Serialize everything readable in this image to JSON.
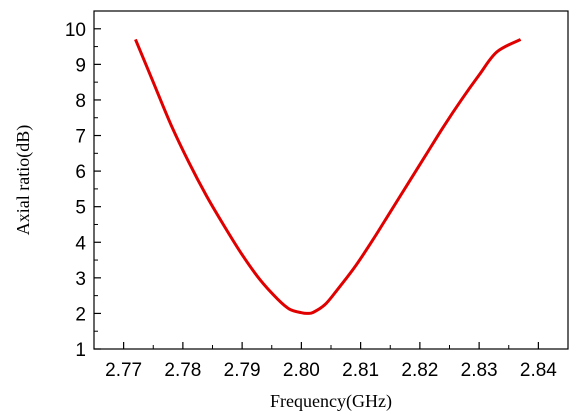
{
  "chart_data": {
    "type": "line",
    "title": "",
    "xlabel": "Frequency(GHz)",
    "ylabel": "Axial ratio(dB)",
    "xlim": [
      2.765,
      2.845
    ],
    "ylim": [
      1,
      10.5
    ],
    "xticks": [
      "2.77",
      "2.78",
      "2.79",
      "2.80",
      "2.81",
      "2.82",
      "2.83",
      "2.84"
    ],
    "yticks": [
      "1",
      "2",
      "3",
      "4",
      "5",
      "6",
      "7",
      "8",
      "9",
      "10"
    ],
    "grid": false,
    "legend": "none",
    "series": [
      {
        "color": "#e00000",
        "x": [
          2.772,
          2.775,
          2.778,
          2.781,
          2.784,
          2.787,
          2.79,
          2.793,
          2.796,
          2.798,
          2.8,
          2.801,
          2.802,
          2.804,
          2.806,
          2.809,
          2.812,
          2.815,
          2.818,
          2.821,
          2.824,
          2.827,
          2.83,
          2.833,
          2.837
        ],
        "y": [
          9.7,
          8.5,
          7.3,
          6.25,
          5.3,
          4.45,
          3.65,
          2.95,
          2.4,
          2.12,
          2.02,
          2.0,
          2.03,
          2.25,
          2.65,
          3.3,
          4.05,
          4.85,
          5.65,
          6.45,
          7.25,
          8.0,
          8.7,
          9.35,
          9.7
        ]
      }
    ]
  }
}
